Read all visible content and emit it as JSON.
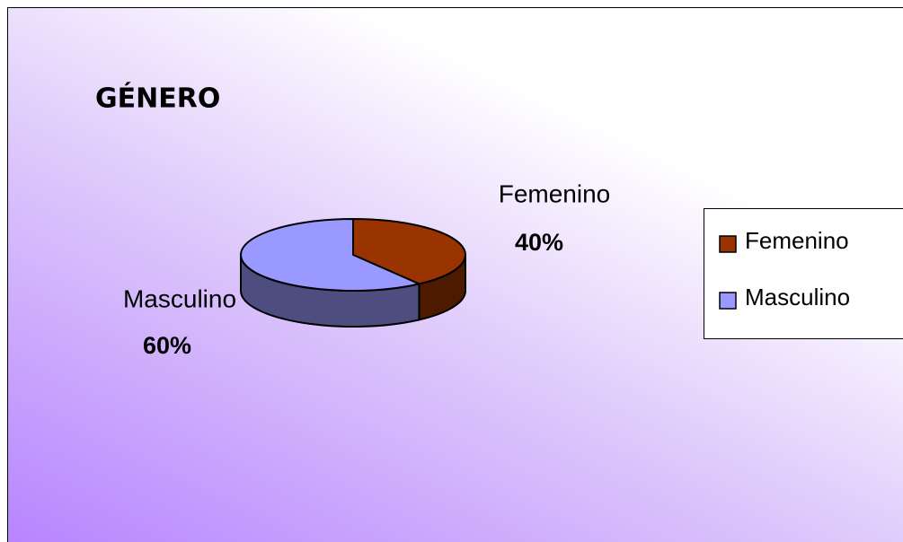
{
  "chart_data": {
    "type": "pie",
    "title": "GÉNERO",
    "categories": [
      "Femenino",
      "Masculino"
    ],
    "values": [
      40,
      60
    ],
    "value_labels": [
      "40%",
      "60%"
    ],
    "colors": [
      "#993300",
      "#9999ff"
    ],
    "legend": "right"
  }
}
